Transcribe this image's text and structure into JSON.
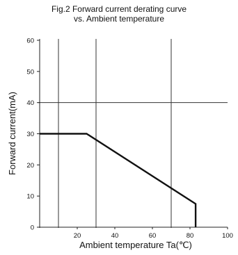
{
  "chart_data": {
    "type": "line",
    "title": "Fig.2 Forward current derating curve",
    "subtitle": "vs. Ambient temperature",
    "xlabel": "Ambient temperature Ta(℃)",
    "ylabel": "Forward current(mA)",
    "xlim": [
      0,
      100
    ],
    "ylim": [
      0,
      60
    ],
    "x_ticks": [
      0,
      20,
      40,
      60,
      80,
      100
    ],
    "x_tick_labels": [
      "0",
      "20",
      "40",
      "60",
      "80",
      "100"
    ],
    "y_ticks": [
      0,
      10,
      20,
      30,
      40,
      50,
      60
    ],
    "y_tick_labels": [
      "0",
      "10",
      "20",
      "30",
      "40",
      "50",
      "60"
    ],
    "x_gridlines": [
      10,
      30,
      70
    ],
    "y_gridlines": [
      40
    ],
    "grid": true,
    "series": [
      {
        "x": [
          0,
          25,
          83,
          83
        ],
        "y": [
          30,
          30,
          7.5,
          0
        ],
        "color": "#111111"
      }
    ],
    "axis_color": "#222222",
    "grid_color": "#333333"
  }
}
